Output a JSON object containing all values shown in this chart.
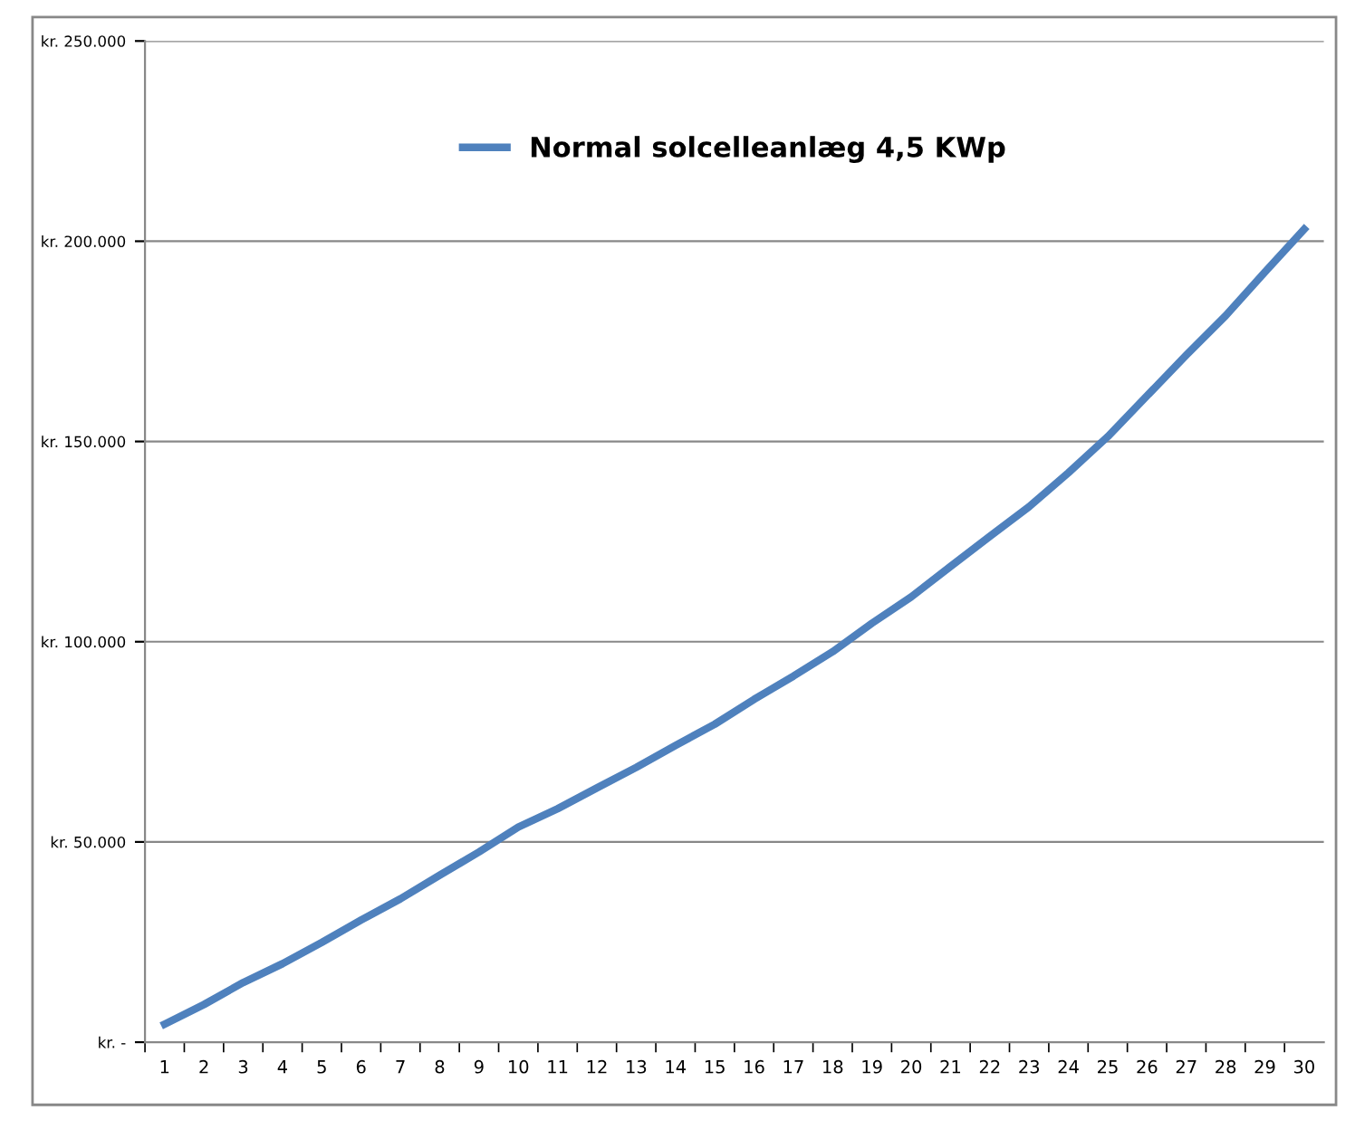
{
  "chart_data": {
    "type": "line",
    "categories": [
      "1",
      "2",
      "3",
      "4",
      "5",
      "6",
      "7",
      "8",
      "9",
      "10",
      "11",
      "12",
      "13",
      "14",
      "15",
      "16",
      "17",
      "18",
      "19",
      "20",
      "21",
      "22",
      "23",
      "24",
      "25",
      "26",
      "27",
      "28",
      "29",
      "30"
    ],
    "series": [
      {
        "name": "Normal solcelleanlæg 4,5 KWp",
        "color": "#4f81bd",
        "values": [
          4500,
          9400,
          14900,
          19600,
          24900,
          30500,
          35800,
          41700,
          47500,
          53700,
          58300,
          63500,
          68600,
          74100,
          79400,
          85600,
          91400,
          97500,
          104600,
          111200,
          118800,
          126300,
          133700,
          142200,
          151200,
          161400,
          171600,
          181400,
          192300,
          203000
        ]
      }
    ],
    "ylim": [
      0,
      250000
    ],
    "yticks": [
      {
        "value": 0,
        "label": "kr. -"
      },
      {
        "value": 50000,
        "label": "kr. 50.000"
      },
      {
        "value": 100000,
        "label": "kr. 100.000"
      },
      {
        "value": 150000,
        "label": "kr. 150.000"
      },
      {
        "value": 200000,
        "label": "kr. 200.000"
      },
      {
        "value": 250000,
        "label": "kr. 250.000"
      }
    ],
    "grid": "y",
    "legend": "top",
    "marker": "none",
    "line_style": "solid"
  }
}
